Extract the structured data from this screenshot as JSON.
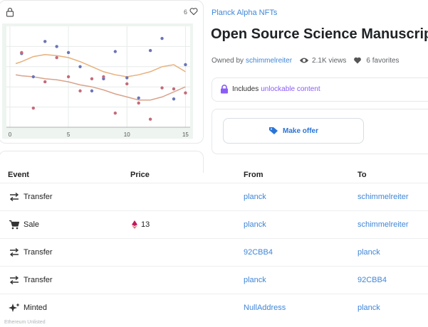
{
  "left_card": {
    "favorite_count": "6",
    "icons": {
      "lock": "lock-icon",
      "heart": "heart-outline-icon"
    }
  },
  "chart_data": {
    "type": "scatter",
    "x_ticks": [
      "0",
      "5",
      "10",
      "15"
    ],
    "xlim": [
      -0.3,
      15.4
    ],
    "ylim": [
      0,
      1
    ],
    "grid": true,
    "series": [
      {
        "color": "#6b74b8",
        "points": [
          [
            1,
            0.73
          ],
          [
            2,
            0.5
          ],
          [
            3,
            0.85
          ],
          [
            4,
            0.8
          ],
          [
            5,
            0.74
          ],
          [
            6,
            0.6
          ],
          [
            7,
            0.36
          ],
          [
            8,
            0.48
          ],
          [
            9,
            0.75
          ],
          [
            10,
            0.49
          ],
          [
            11,
            0.29
          ],
          [
            12,
            0.76
          ],
          [
            13,
            0.88
          ],
          [
            14,
            0.28
          ],
          [
            15,
            0.62
          ]
        ]
      },
      {
        "color": "#c46b7a",
        "points": [
          [
            1,
            0.74
          ],
          [
            2,
            0.19
          ],
          [
            3,
            0.45
          ],
          [
            4,
            0.69
          ],
          [
            5,
            0.5
          ],
          [
            6,
            0.36
          ],
          [
            7,
            0.48
          ],
          [
            8,
            0.5
          ],
          [
            9,
            0.14
          ],
          [
            10,
            0.43
          ],
          [
            11,
            0.24
          ],
          [
            12,
            0.08
          ],
          [
            13,
            0.39
          ],
          [
            14,
            0.38
          ],
          [
            15,
            0.34
          ]
        ]
      }
    ],
    "trend_lines": [
      {
        "color": "#e8b07a",
        "points": [
          [
            0.5,
            0.63
          ],
          [
            1,
            0.65
          ],
          [
            2,
            0.7
          ],
          [
            3,
            0.72
          ],
          [
            4,
            0.71
          ],
          [
            5,
            0.69
          ],
          [
            6,
            0.65
          ],
          [
            7,
            0.6
          ],
          [
            8,
            0.55
          ],
          [
            9,
            0.52
          ],
          [
            10,
            0.5
          ],
          [
            11,
            0.52
          ],
          [
            12,
            0.55
          ],
          [
            13,
            0.6
          ],
          [
            14,
            0.62
          ],
          [
            15,
            0.55
          ]
        ]
      },
      {
        "color": "#d9a38c",
        "points": [
          [
            0.5,
            0.52
          ],
          [
            1,
            0.51
          ],
          [
            2,
            0.5
          ],
          [
            3,
            0.48
          ],
          [
            4,
            0.47
          ],
          [
            5,
            0.45
          ],
          [
            6,
            0.42
          ],
          [
            7,
            0.4
          ],
          [
            8,
            0.37
          ],
          [
            9,
            0.33
          ],
          [
            10,
            0.3
          ],
          [
            11,
            0.27
          ],
          [
            12,
            0.27
          ],
          [
            13,
            0.3
          ],
          [
            14,
            0.35
          ],
          [
            15,
            0.4
          ]
        ]
      }
    ]
  },
  "collection_name": "Planck Alpha NFTs",
  "title": "Open Source Science Manuscript",
  "owner": {
    "prefix": "Owned by",
    "name": "schimmelreiter",
    "views": "2.1K views",
    "favorites": "6 favorites"
  },
  "unlockable": {
    "prefix": "Includes",
    "link": "unlockable content"
  },
  "offer_button": "Make offer",
  "table": {
    "headers": {
      "event": "Event",
      "price": "Price",
      "from": "From",
      "to": "To"
    },
    "rows": [
      {
        "event": "Transfer",
        "icon": "transfer-arrows-icon",
        "price": "",
        "from": "planck",
        "to": "schimmelreiter"
      },
      {
        "event": "Sale",
        "icon": "shopping-cart-icon",
        "price": "13",
        "from": "planck",
        "to": "schimmelreiter"
      },
      {
        "event": "Transfer",
        "icon": "transfer-arrows-icon",
        "price": "",
        "from": "92CBB4",
        "to": "planck"
      },
      {
        "event": "Transfer",
        "icon": "transfer-arrows-icon",
        "price": "",
        "from": "planck",
        "to": "92CBB4"
      },
      {
        "event": "Minted",
        "icon": "sparkles-icon",
        "price": "",
        "from": "NullAddress",
        "to": "planck"
      }
    ]
  },
  "footer_text": "Ethereum Unlisted"
}
